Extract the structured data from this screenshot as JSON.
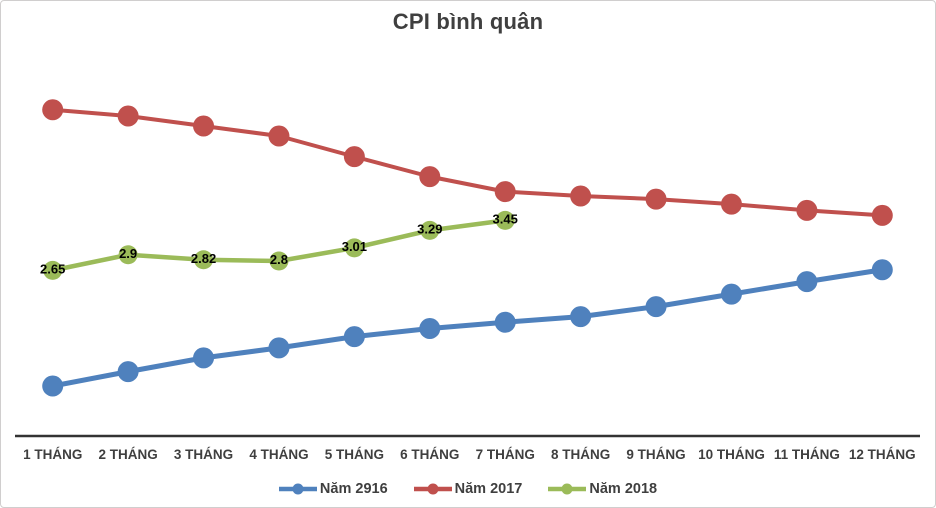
{
  "chart_data": {
    "type": "line",
    "title": "CPI bình quân",
    "categories": [
      "1 THÁNG",
      "2 THÁNG",
      "3 THÁNG",
      "4 THÁNG",
      "5 THÁNG",
      "6 THÁNG",
      "7 THÁNG",
      "8 THÁNG",
      "9 THÁNG",
      "10 THÁNG",
      "11 THÁNG",
      "12 THÁNG"
    ],
    "series": [
      {
        "name": "Năm 2916",
        "color": "#4F81BD",
        "values": [
          0.8,
          1.03,
          1.25,
          1.41,
          1.59,
          1.72,
          1.82,
          1.91,
          2.07,
          2.27,
          2.47,
          2.66
        ],
        "data_labels": null
      },
      {
        "name": "Năm 2017",
        "color": "#C0504D",
        "values": [
          5.22,
          5.12,
          4.96,
          4.8,
          4.47,
          4.15,
          3.91,
          3.84,
          3.79,
          3.71,
          3.61,
          3.53
        ],
        "data_labels": null
      },
      {
        "name": "Năm 2018",
        "color": "#9BBB59",
        "values": [
          2.65,
          2.9,
          2.82,
          2.8,
          3.01,
          3.29,
          3.45
        ],
        "data_labels": [
          "2.65",
          "2.9",
          "2.82",
          "2.8",
          "3.01",
          "3.29",
          "3.45"
        ]
      }
    ],
    "xlabel": "",
    "ylabel": "",
    "ylim": [
      0,
      6
    ],
    "grid": false,
    "y_axis_labels_visible": false,
    "marker_style": "circle",
    "legend_position": "bottom"
  },
  "colors": {
    "background": "#FFFFFF",
    "frame_border": "#D0CECE",
    "axis_line": "#333333",
    "tick_label": "#3F3F3F",
    "title": "#3F3F3F",
    "data_label": "#000000"
  }
}
